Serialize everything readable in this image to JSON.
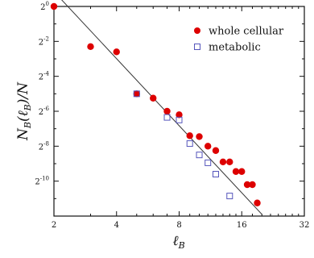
{
  "chart_data": {
    "type": "scatter",
    "x_scale": "log2",
    "y_scale": "log2",
    "xlim": [
      2,
      32
    ],
    "ylim_log2": [
      -12,
      0
    ],
    "x_ticks": [
      {
        "value": 2,
        "label": "2"
      },
      {
        "value": 4,
        "label": "4"
      },
      {
        "value": 8,
        "label": "8"
      },
      {
        "value": 16,
        "label": "16"
      },
      {
        "value": 32,
        "label": "32"
      }
    ],
    "y_ticks": [
      {
        "exp": 0,
        "base": "2",
        "sup": "0"
      },
      {
        "exp": -2,
        "base": "2",
        "sup": "-2"
      },
      {
        "exp": -4,
        "base": "2",
        "sup": "-4"
      },
      {
        "exp": -6,
        "base": "2",
        "sup": "-6"
      },
      {
        "exp": -8,
        "base": "2",
        "sup": "-8"
      },
      {
        "exp": -10,
        "base": "2",
        "sup": "-10"
      }
    ],
    "xlabel": {
      "main": "ℓ",
      "sub": "B"
    },
    "ylabel": {
      "text": "N",
      "sub1": "B",
      "mid": "(ℓ",
      "sub2": "B",
      "tail": ")/N"
    },
    "legend_position": "top-right",
    "series": [
      {
        "name": "whole cellular",
        "marker": "filled-circle",
        "color": "#dd0000",
        "points": [
          [
            2.0,
            0.0
          ],
          [
            3.0,
            -2.3
          ],
          [
            4.0,
            -2.6
          ],
          [
            5.0,
            -5.0
          ],
          [
            6.0,
            -5.25
          ],
          [
            7.0,
            -6.0
          ],
          [
            8.0,
            -6.2
          ],
          [
            9.0,
            -7.4
          ],
          [
            10.0,
            -7.45
          ],
          [
            11.0,
            -8.0
          ],
          [
            12.0,
            -8.25
          ],
          [
            13.0,
            -8.9
          ],
          [
            14.0,
            -8.9
          ],
          [
            15.0,
            -9.45
          ],
          [
            16.0,
            -9.45
          ],
          [
            17.0,
            -10.2
          ],
          [
            18.0,
            -10.2
          ],
          [
            19.0,
            -11.25
          ]
        ]
      },
      {
        "name": "metabolic",
        "marker": "open-square",
        "color": "#5555bb",
        "points": [
          [
            5.0,
            -5.0
          ],
          [
            7.0,
            -6.35
          ],
          [
            8.0,
            -6.5
          ],
          [
            9.0,
            -7.85
          ],
          [
            10.0,
            -8.5
          ],
          [
            11.0,
            -8.95
          ],
          [
            12.0,
            -9.6
          ],
          [
            14.0,
            -10.85
          ]
        ]
      }
    ],
    "fit_line": {
      "color": "#333333",
      "x_range": [
        2.0,
        20.0
      ],
      "y_log2_range": [
        0.85,
        -11.9
      ]
    }
  }
}
